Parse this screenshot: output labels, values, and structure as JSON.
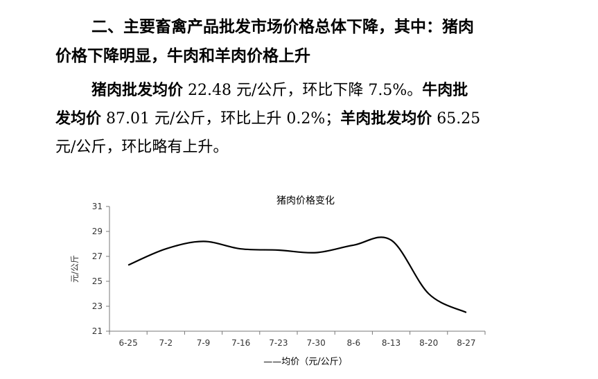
{
  "heading": {
    "line1": "二、主要畜禽产品批发市场价格总体下降，其中：猪肉",
    "line2": "价格下降明显，牛肉和羊肉价格上升"
  },
  "paragraph": {
    "l1_b1": "猪肉批发均价",
    "l1_t1": " 22.48 元/公斤，环比下降 7.5%。",
    "l1_b2": "牛肉批",
    "l2_b1": "发均价",
    "l2_t1": " 87.01 元/公斤，环比上升 0.2%；",
    "l2_b2": "羊肉批发均价",
    "l2_t2": " 65.25",
    "l3_t1": "元/公斤，环比略有上升。"
  },
  "chart_data": {
    "type": "line",
    "title": "猪肉价格变化",
    "ylabel": "元/公斤",
    "xlabel": "",
    "legend": "——均价（元/公斤）",
    "legend_position": "bottom",
    "categories": [
      "6-25",
      "7-2",
      "7-9",
      "7-16",
      "7-23",
      "7-30",
      "8-6",
      "8-13",
      "8-20",
      "8-27"
    ],
    "series": [
      {
        "name": "均价（元/公斤）",
        "values": [
          26.3,
          27.6,
          28.2,
          27.6,
          27.5,
          27.3,
          27.9,
          28.3,
          24.0,
          22.5
        ]
      }
    ],
    "yticks": [
      21,
      23,
      25,
      27,
      29,
      31
    ],
    "ylim": [
      21,
      31
    ],
    "grid": false,
    "line_color": "#000000"
  }
}
